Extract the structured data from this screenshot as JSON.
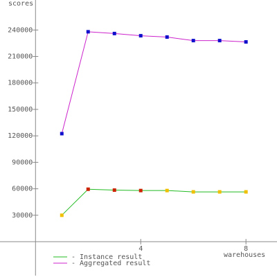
{
  "chart_data": {
    "type": "line",
    "y_label": "scores",
    "x_label": "warehouses",
    "x": [
      1,
      2,
      3,
      4,
      5,
      6,
      7,
      8
    ],
    "series": [
      {
        "name": "- Instance result",
        "color": "#22bb22",
        "marker_colors": [
          "#f0c000",
          "#cc2200",
          "#cc2200",
          "#cc2200",
          "#f0c000",
          "#f0c000",
          "#f0c000",
          "#f0c000"
        ],
        "values": [
          30000,
          59500,
          58500,
          58000,
          58000,
          56500,
          56500,
          56500
        ]
      },
      {
        "name": "- Aggregated result",
        "color": "#cc22cc",
        "marker_colors": [
          "#1010cc",
          "#1010cc",
          "#1010cc",
          "#1010cc",
          "#1010cc",
          "#1010cc",
          "#1010cc",
          "#1010cc"
        ],
        "values": [
          122500,
          238000,
          236000,
          233500,
          232000,
          228000,
          228000,
          226500
        ]
      }
    ],
    "xlim": [
      -1.35,
      9.18
    ],
    "ylim": [
      -40000,
      274000
    ],
    "xticks": [
      4,
      8
    ],
    "yticks": [
      30000,
      60000,
      90000,
      120000,
      150000,
      180000,
      210000,
      240000
    ]
  }
}
